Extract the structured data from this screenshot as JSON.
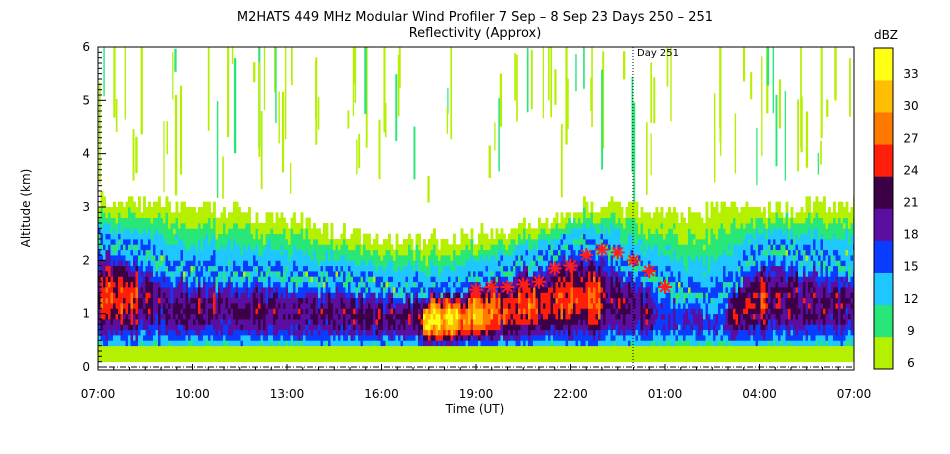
{
  "chart_data": {
    "type": "heatmap",
    "title": "M2HATS 449 MHz Modular Wind Profiler   7 Sep –  8 Sep 23 Days 250 – 251",
    "subtitle": "Reflectivity (Approx)",
    "xlabel": "Time (UT)",
    "ylabel": "Altitude (km)",
    "x_ticks": [
      "07:00",
      "10:00",
      "13:00",
      "16:00",
      "19:00",
      "22:00",
      "01:00",
      "04:00",
      "07:00"
    ],
    "x_tick_hours": [
      0,
      3,
      6,
      9,
      12,
      15,
      18,
      21,
      24
    ],
    "xlim_hours": [
      0,
      24
    ],
    "y_ticks": [
      "0",
      "1",
      "2",
      "3",
      "4",
      "5",
      "6"
    ],
    "ylim_km": [
      0,
      6
    ],
    "day_marker": {
      "label": "Day 251",
      "hour": 17
    },
    "colorbar": {
      "unit": "dBZ",
      "labels": [
        "6",
        "9",
        "12",
        "15",
        "18",
        "21",
        "24",
        "27",
        "30",
        "33"
      ],
      "colors": [
        "#b4f000",
        "#28e678",
        "#1ec8ff",
        "#0a3cff",
        "#5a0fa0",
        "#3c0046",
        "#ff1e0a",
        "#ff7800",
        "#ffbe00",
        "#ffff14"
      ]
    },
    "boundary_layer_markers": {
      "hours": [
        12.0,
        12.5,
        13.0,
        13.5,
        14.0,
        14.5,
        15.0,
        15.5,
        16.0,
        16.5,
        17.0,
        17.5,
        18.0
      ],
      "altitude_km": [
        1.45,
        1.5,
        1.5,
        1.55,
        1.6,
        1.85,
        1.9,
        2.1,
        2.2,
        2.15,
        2.0,
        1.8,
        1.5
      ],
      "color": "#ff1e1e"
    }
  }
}
